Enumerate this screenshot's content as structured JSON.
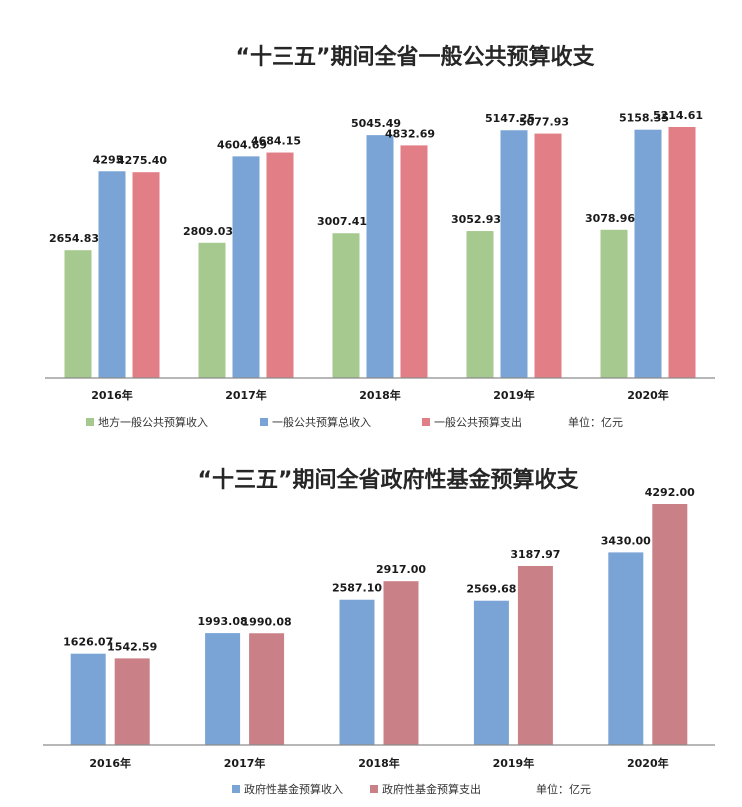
{
  "chart_data": [
    {
      "type": "bar",
      "title": "“十三五”期间全省一般公共预算收支",
      "categories": [
        "2016年",
        "2017年",
        "2018年",
        "2019年",
        "2020年"
      ],
      "series": [
        {
          "name": "地方一般公共预算收入",
          "color": "#a5c98e",
          "values": [
            2654.83,
            2809.03,
            3007.41,
            3052.93,
            3078.96
          ],
          "labels": [
            "2654.83",
            "2809.03",
            "3007.41",
            "3052.93",
            "3078.96"
          ]
        },
        {
          "name": "一般公共预算总收入",
          "color": "#7aa4d6",
          "values": [
            4295,
            4604.69,
            5045.49,
            5147.25,
            5158.35
          ],
          "labels": [
            "4295",
            "4604.69",
            "5045.49",
            "5147.25",
            "5158.35"
          ]
        },
        {
          "name": "一般公共预算支出",
          "color": "#e27e85",
          "values": [
            4275.4,
            4684.15,
            4832.69,
            5077.93,
            5214.61
          ],
          "labels": [
            "4275.40",
            "4684.15",
            "4832.69",
            "5077.93",
            "5214.61"
          ]
        }
      ],
      "unit_note": "单位：亿元",
      "ylim": [
        0,
        6000
      ],
      "grid": false,
      "legend": "bottom"
    },
    {
      "type": "bar",
      "title": "“十三五”期间全省政府性基金预算收支",
      "categories": [
        "2016年",
        "2017年",
        "2018年",
        "2019年",
        "2020年"
      ],
      "series": [
        {
          "name": "政府性基金预算收入",
          "color": "#7aa4d6",
          "values": [
            1626.07,
            1993.08,
            2587.1,
            2569.68,
            3430.0
          ],
          "labels": [
            "1626.07",
            "1993.08",
            "2587.10",
            "2569.68",
            "3430.00"
          ]
        },
        {
          "name": "政府性基金预算支出",
          "color": "#c98086",
          "values": [
            1542.59,
            1990.08,
            2917.0,
            3187.97,
            4292.0
          ],
          "labels": [
            "1542.59",
            "1990.08",
            "2917.00",
            "3187.97",
            "4292.00"
          ]
        }
      ],
      "unit_note": "单位：亿元",
      "ylim": [
        0,
        4800
      ],
      "grid": false,
      "legend": "bottom"
    }
  ]
}
